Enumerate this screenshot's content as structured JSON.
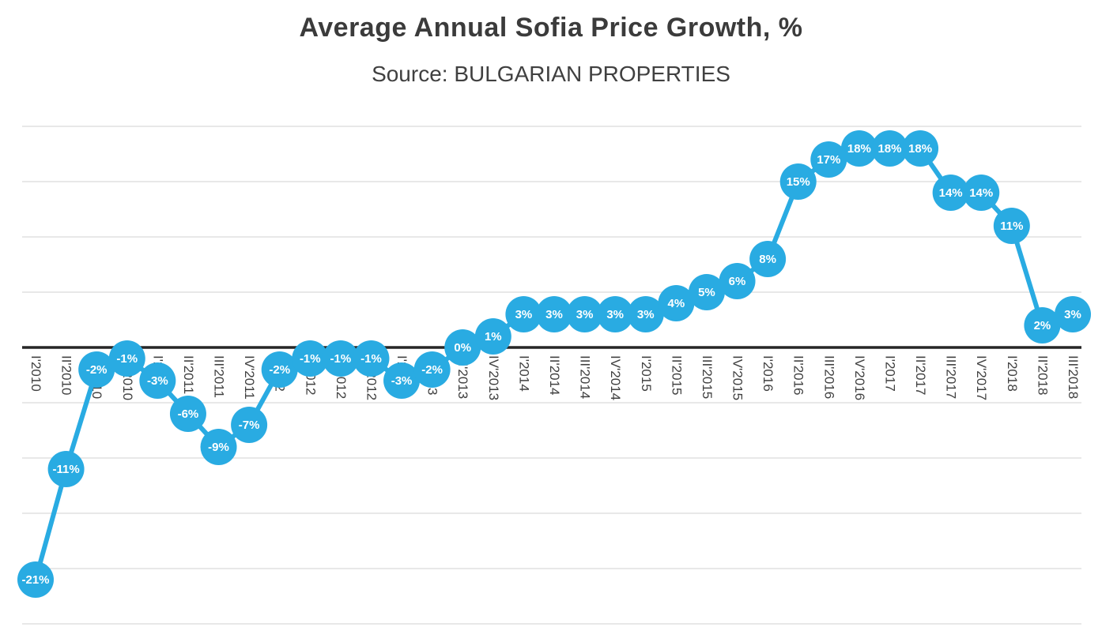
{
  "chart_data": {
    "type": "line",
    "title": "Average Annual Sofia Price Growth, %",
    "subtitle": "Source: BULGARIAN PROPERTIES",
    "categories": [
      "I'2010",
      "II'2010",
      "III'2010",
      "IV'2010",
      "I'2011",
      "II'2011",
      "III'2011",
      "IV'2011",
      "I'2012",
      "II'2012",
      "III'2012",
      "IV'2012",
      "I'2013",
      "II'2013",
      "III'2013",
      "IV'2013",
      "I'2014",
      "II'2014",
      "III'2014",
      "IV'2014",
      "I'2015",
      "II'2015",
      "III'2015",
      "IV'2015",
      "I'2016",
      "II'2016",
      "III'2016",
      "IV'2016",
      "I'2017",
      "II'2017",
      "III'2017",
      "IV'2017",
      "I'2018",
      "II'2018",
      "III'2018"
    ],
    "values": [
      -21,
      -11,
      -2,
      -1,
      -3,
      -6,
      -9,
      -7,
      -2,
      -1,
      -1,
      -1,
      -3,
      -2,
      0,
      1,
      3,
      3,
      3,
      3,
      3,
      4,
      5,
      6,
      8,
      15,
      17,
      18,
      18,
      18,
      14,
      14,
      11,
      2,
      3
    ],
    "labels": [
      "-21%",
      "-11%",
      "-2%",
      "-1%",
      "-3%",
      "-6%",
      "-9%",
      "-7%",
      "-2%",
      "-1%",
      "-1%",
      "-1%",
      "-3%",
      "-2%",
      "0%",
      "1%",
      "3%",
      "3%",
      "3%",
      "3%",
      "3%",
      "4%",
      "5%",
      "6%",
      "8%",
      "15%",
      "17%",
      "18%",
      "18%",
      "18%",
      "14%",
      "14%",
      "11%",
      "2%",
      "3%"
    ],
    "ylim": [
      -25,
      20
    ],
    "grid_step": 5,
    "grid": "on",
    "legend": "none",
    "xlabel": "",
    "ylabel": "",
    "marker_color": "#29abe2",
    "line_color": "#29abe2",
    "data_label_color": "#ffffff",
    "axis_line_color": "#262626",
    "grid_line_color": "#d9d9d9",
    "axis_text_color": "#404040"
  }
}
